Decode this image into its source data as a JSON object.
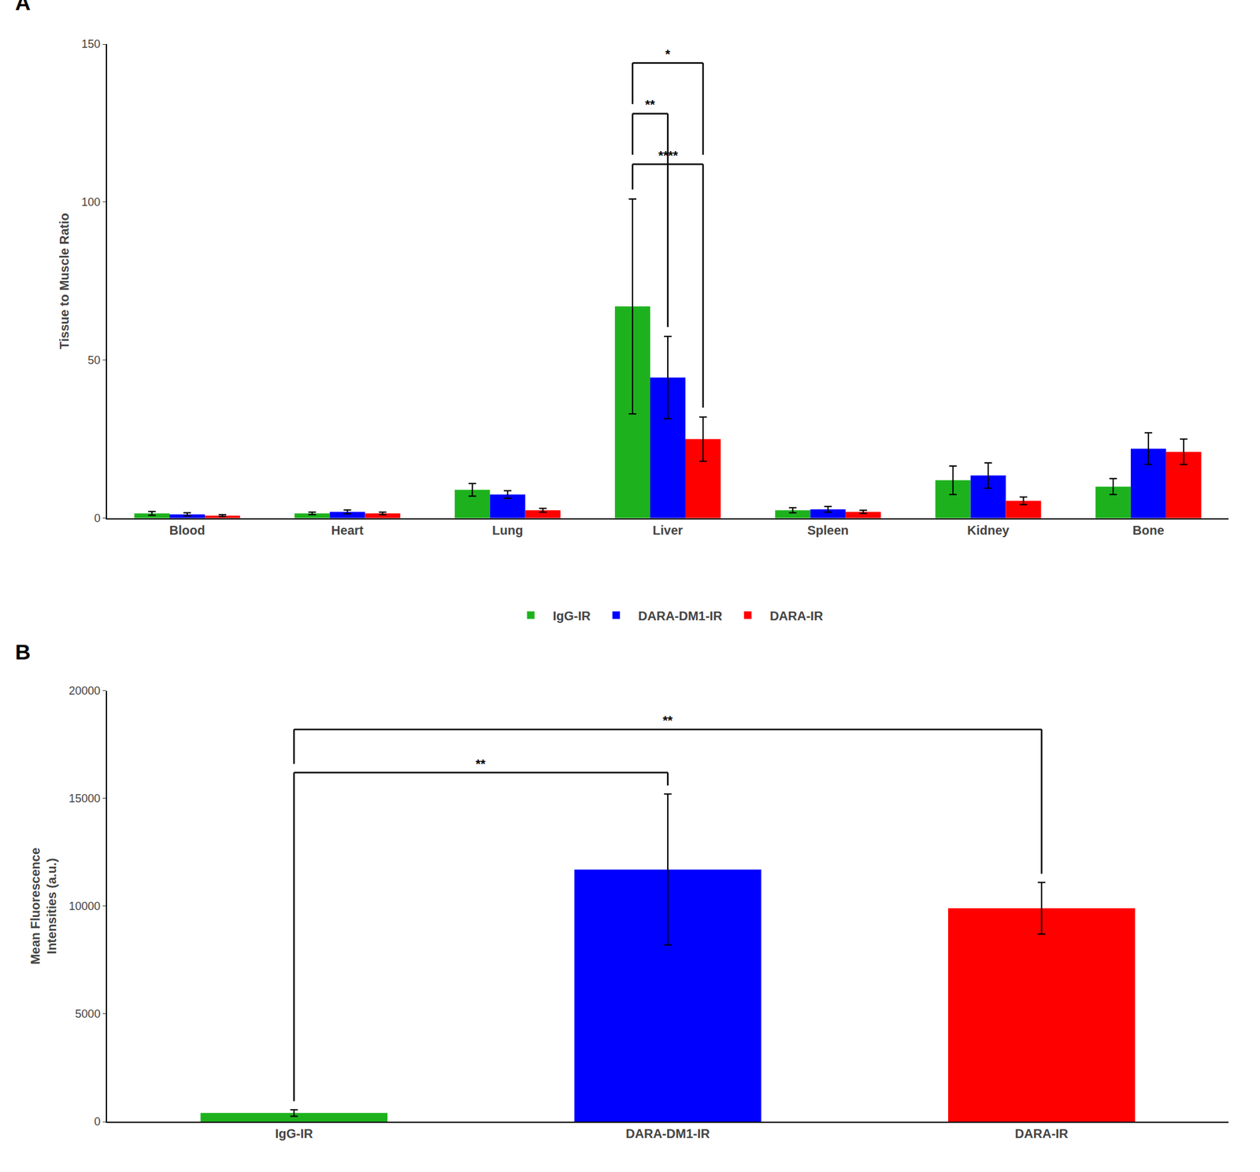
{
  "chart_data": [
    {
      "type": "bar",
      "title": "A",
      "categories": [
        "Blood",
        "Heart",
        "Lung",
        "Liver",
        "Spleen",
        "Kidney",
        "Bone"
      ],
      "series": [
        {
          "name": "IgG-IR",
          "color": "#1db21d",
          "values": [
            1.5,
            1.5,
            9.0,
            67.0,
            2.5,
            12.0,
            10.0
          ],
          "errors": [
            0.6,
            0.4,
            2.0,
            34.0,
            0.8,
            4.5,
            2.5
          ]
        },
        {
          "name": "DARA-DM1-IR",
          "color": "#0000ff",
          "values": [
            1.2,
            2.0,
            7.5,
            44.5,
            2.8,
            13.5,
            22.0
          ],
          "errors": [
            0.5,
            0.6,
            1.2,
            13.0,
            0.9,
            4.0,
            5.0
          ]
        },
        {
          "name": "DARA-IR",
          "color": "#ff0000",
          "values": [
            0.8,
            1.5,
            2.5,
            25.0,
            2.0,
            5.5,
            21.0
          ],
          "errors": [
            0.3,
            0.4,
            0.6,
            7.0,
            0.5,
            1.2,
            4.0
          ]
        }
      ],
      "ylabel": "Tissue to Muscle Ratio",
      "ylim": [
        0,
        150
      ],
      "yticks": [
        0,
        50,
        100,
        150
      ],
      "grid": false,
      "legend": "bottom",
      "annotations": [
        {
          "text": "****",
          "category": "Liver",
          "between": [
            "IgG-IR",
            "DARA-IR"
          ],
          "y": 112
        },
        {
          "text": "**",
          "category": "Liver",
          "between": [
            "IgG-IR",
            "DARA-DM1-IR"
          ],
          "y": 128
        },
        {
          "text": "*",
          "category": "Liver",
          "between": [
            "IgG-IR",
            "DARA-IR"
          ],
          "y": 144
        }
      ]
    },
    {
      "type": "bar",
      "title": "B",
      "categories": [
        "IgG-IR",
        "DARA-DM1-IR",
        "DARA-IR"
      ],
      "values": [
        400,
        11700,
        9900
      ],
      "errors": [
        150,
        3500,
        1200
      ],
      "colors": [
        "#1db21d",
        "#0000ff",
        "#ff0000"
      ],
      "ylabel": "Mean Fluorescence\nIntensities (a.u.)",
      "ylim": [
        0,
        20000
      ],
      "yticks": [
        0,
        5000,
        10000,
        15000,
        20000
      ],
      "grid": false,
      "annotations": [
        {
          "text": "**",
          "between": [
            "IgG-IR",
            "DARA-DM1-IR"
          ],
          "y": 16200
        },
        {
          "text": "**",
          "between": [
            "IgG-IR",
            "DARA-IR"
          ],
          "y": 18200
        }
      ]
    }
  ]
}
